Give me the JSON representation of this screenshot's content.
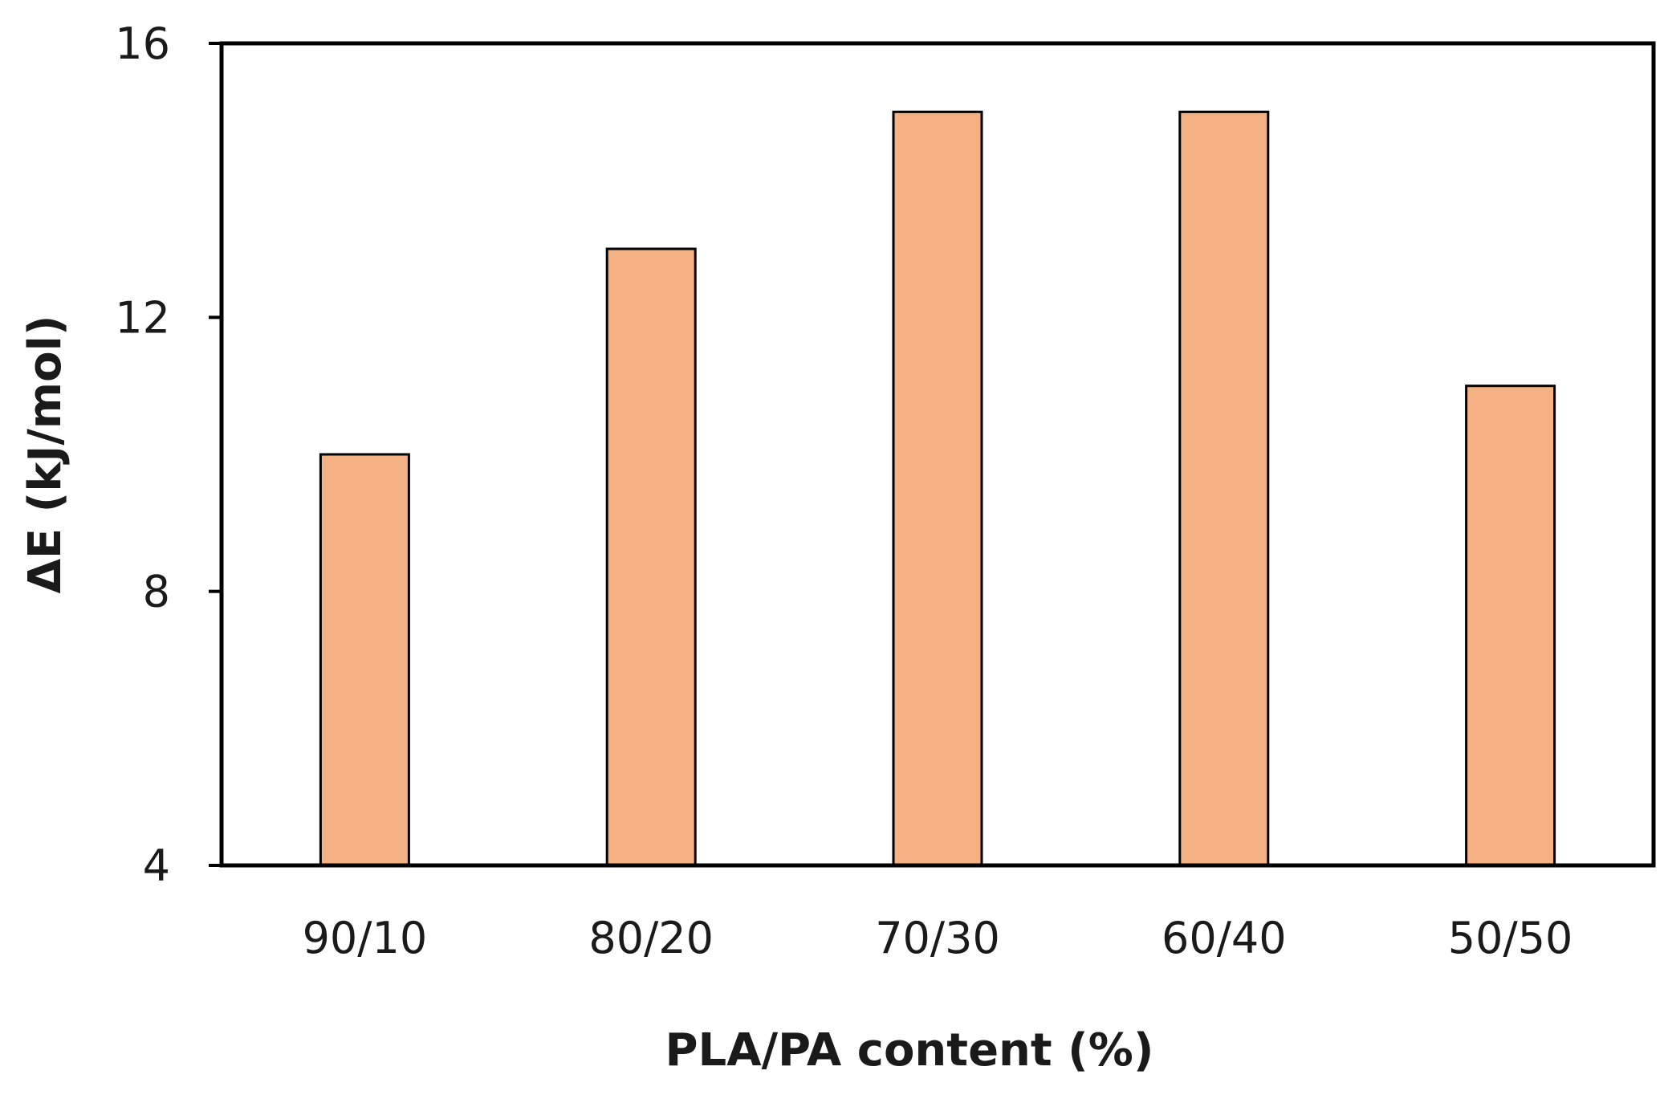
{
  "chart_data": {
    "type": "bar",
    "title": "",
    "xlabel": "PLA/PA content (%)",
    "ylabel": "ΔE (kJ/mol)",
    "categories": [
      "90/10",
      "80/20",
      "70/30",
      "60/40",
      "50/50"
    ],
    "values": [
      10.0,
      13.0,
      15.0,
      15.0,
      11.0
    ],
    "ylim": [
      4,
      16
    ],
    "yticks": [
      4,
      8,
      12,
      16
    ],
    "grid": false,
    "legend": "none",
    "colors": {
      "bar_fill": "#f4b183",
      "bar_stroke": "#000000",
      "axis": "#000000"
    }
  }
}
